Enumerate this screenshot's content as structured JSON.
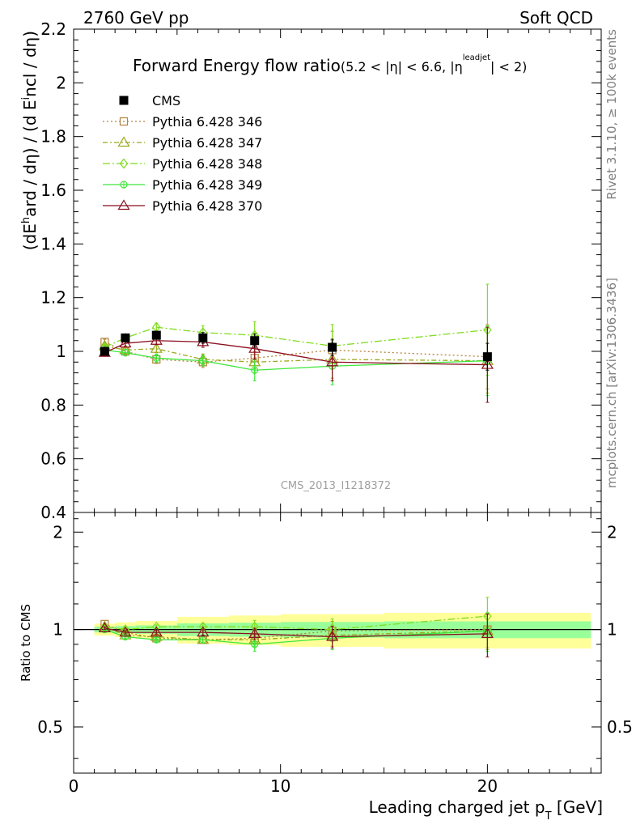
{
  "header": {
    "left": "2760 GeV pp",
    "right": "Soft QCD"
  },
  "side": {
    "rivet": "Rivet 3.1.10, ≥ 100k events",
    "mcplots": "mcplots.cern.ch [arXiv:1306.3436]"
  },
  "chart_data": {
    "type": "line",
    "title_main": "Forward Energy flow ratio",
    "title_cond_a": "(5.2 < |η| < 6.6, |η",
    "title_cond_sup": "leadjet",
    "title_cond_b": "| < 2)",
    "ylabel": "(dE^hard / dη) / (d E^incl / dη)",
    "ratio_ylabel": "Ratio to CMS",
    "xlabel": "Leading charged jet p_T [GeV]",
    "watermark": "CMS_2013_I1218372",
    "xlim": [
      0,
      25.5
    ],
    "ylim_main": [
      0.4,
      2.2
    ],
    "ylim_ratio": [
      0.36,
      2.3
    ],
    "ratio_log_scale": true,
    "x_ticks": [
      "0",
      "10",
      "20"
    ],
    "y_ticks_main": [
      "0.4",
      "0.6",
      "0.8",
      "1",
      "1.2",
      "1.4",
      "1.6",
      "1.8",
      "2",
      "2.2"
    ],
    "y_ticks_ratio": [
      "0.5",
      "1",
      "2"
    ],
    "x": [
      1.5,
      2.5,
      4,
      6.25,
      8.75,
      12.5,
      20
    ],
    "series": [
      {
        "name": "CMS",
        "color": "#000000",
        "marker": "filled-square",
        "dash": "",
        "y": [
          1.0,
          1.05,
          1.06,
          1.05,
          1.04,
          1.015,
          0.98
        ],
        "err": [
          0.01,
          0.012,
          0.015,
          0.02,
          0.025,
          0.03,
          0.05
        ],
        "ratio": [
          1,
          1,
          1,
          1,
          1,
          1,
          1
        ]
      },
      {
        "name": "Pythia 6.428 346",
        "color": "#b5823c",
        "marker": "open-square",
        "dash": "2,3",
        "y": [
          1.035,
          1.0,
          0.97,
          0.96,
          0.975,
          1.005,
          0.98
        ],
        "err": [
          0.01,
          0.012,
          0.015,
          0.02,
          0.04,
          0.07,
          0.12
        ],
        "ratio": [
          1.04,
          0.98,
          0.94,
          0.93,
          0.94,
          0.99,
          1.0
        ]
      },
      {
        "name": "Pythia 6.428 347",
        "color": "#9aa81a",
        "marker": "open-triangle",
        "dash": "6,3,2,3",
        "y": [
          1.02,
          1.005,
          1.01,
          0.97,
          0.96,
          0.97,
          0.965
        ],
        "err": [
          0.01,
          0.012,
          0.015,
          0.02,
          0.04,
          0.07,
          0.12
        ],
        "ratio": [
          1.02,
          0.96,
          0.95,
          0.93,
          0.93,
          0.96,
          0.99
        ]
      },
      {
        "name": "Pythia 6.428 348",
        "color": "#7fdc1e",
        "marker": "open-diamond",
        "dash": "9,3,2,3",
        "y": [
          1.015,
          1.05,
          1.09,
          1.07,
          1.06,
          1.02,
          1.08
        ],
        "err": [
          0.01,
          0.012,
          0.015,
          0.025,
          0.05,
          0.08,
          0.17
        ],
        "ratio": [
          1.02,
          1.0,
          1.02,
          1.02,
          1.02,
          1.0,
          1.1
        ]
      },
      {
        "name": "Pythia 6.428 349",
        "color": "#3ee63a",
        "marker": "open-circle-cross",
        "dash": "",
        "y": [
          1.005,
          0.995,
          0.975,
          0.965,
          0.93,
          0.945,
          0.965
        ],
        "err": [
          0.01,
          0.012,
          0.015,
          0.02,
          0.04,
          0.07,
          0.13
        ],
        "ratio": [
          1.0,
          0.95,
          0.93,
          0.93,
          0.9,
          0.94,
          0.99
        ]
      },
      {
        "name": "Pythia 6.428 370",
        "color": "#8b0f1f",
        "marker": "open-triangle",
        "dash": "",
        "y": [
          0.995,
          1.03,
          1.04,
          1.035,
          1.01,
          0.96,
          0.95
        ],
        "err": [
          0.01,
          0.012,
          0.015,
          0.02,
          0.04,
          0.07,
          0.14
        ],
        "ratio": [
          1.01,
          0.98,
          0.98,
          0.98,
          0.97,
          0.95,
          0.97
        ]
      }
    ]
  }
}
